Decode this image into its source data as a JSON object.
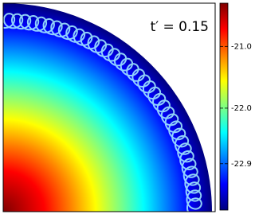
{
  "chart_data": {
    "type": "heatmap",
    "annotation": "t′ = 0.15",
    "colormap": [
      "#00007f",
      "#0000ff",
      "#0080ff",
      "#00ffff",
      "#80ff80",
      "#ffff00",
      "#ff8000",
      "#ff0000",
      "#7f0000"
    ],
    "clim": [
      -23.65,
      -20.3
    ],
    "yticks": [
      {
        "value": -21,
        "label": "-21.0"
      },
      {
        "value": -22,
        "label": "-22.0"
      },
      {
        "value": -22.9,
        "label": "-22.9"
      }
    ]
  }
}
